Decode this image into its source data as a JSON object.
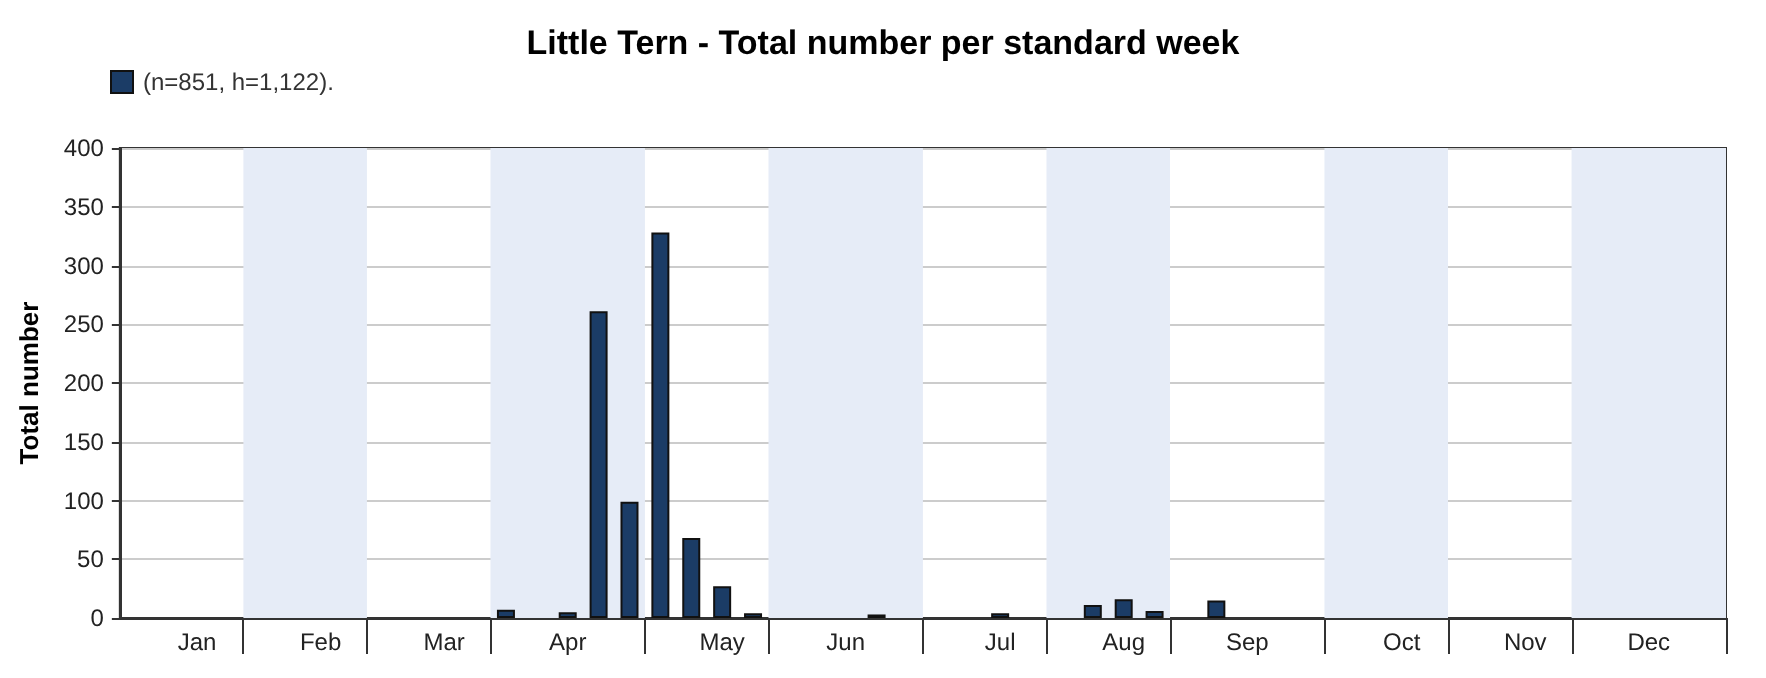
{
  "chart_data": {
    "type": "bar",
    "title": "Little Tern - Total number per standard week",
    "ylabel": "Total number",
    "categories": [
      null,
      null,
      "Jan",
      null,
      null,
      null,
      "Feb",
      null,
      null,
      null,
      "Mar",
      null,
      null,
      null,
      "Apr",
      null,
      null,
      null,
      null,
      "May",
      null,
      null,
      null,
      "Jun",
      null,
      null,
      null,
      null,
      "Jul",
      null,
      null,
      null,
      "Aug",
      null,
      null,
      null,
      "Sep",
      null,
      null,
      null,
      null,
      "Oct",
      null,
      null,
      null,
      "Nov",
      null,
      null,
      null,
      "Dec",
      null,
      null
    ],
    "series": [
      {
        "name": "(n=851, h=1,122).",
        "color": "#1b3c66",
        "values": [
          0,
          0,
          0,
          0,
          0,
          0,
          0,
          0,
          0,
          0,
          0,
          0,
          7,
          0,
          5,
          261,
          99,
          328,
          68,
          27,
          4,
          0,
          0,
          0,
          3,
          0,
          0,
          0,
          4,
          0,
          0,
          11,
          16,
          6,
          0,
          15,
          0,
          0,
          0,
          0,
          0,
          0,
          0,
          0,
          0,
          0,
          0,
          0,
          0,
          0,
          0,
          0
        ]
      }
    ],
    "ylim": [
      0,
      400
    ],
    "yticks": [
      0,
      50,
      100,
      150,
      200,
      250,
      300,
      350,
      400
    ],
    "grid": "y",
    "legend": "top left"
  }
}
